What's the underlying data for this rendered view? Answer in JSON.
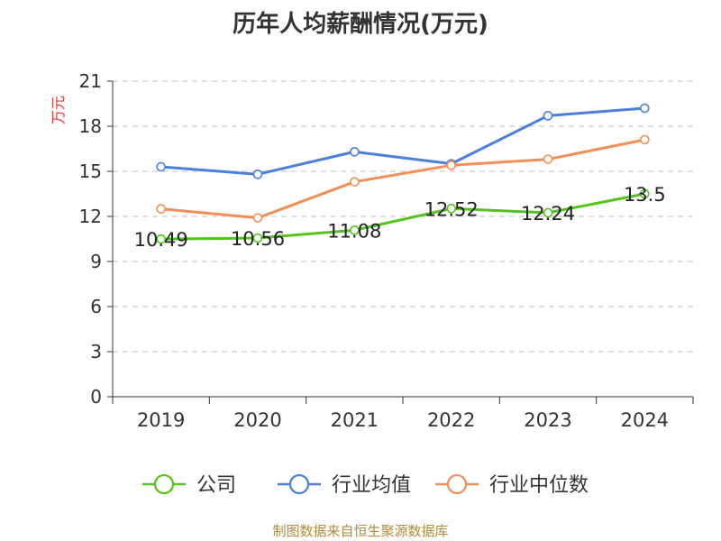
{
  "chart_data": {
    "type": "line",
    "title": "历年人均薪酬情况(万元)",
    "ylabel": "万元",
    "xlabel": "",
    "categories": [
      "2019",
      "2020",
      "2021",
      "2022",
      "2023",
      "2024"
    ],
    "ylim": [
      0,
      21
    ],
    "yticks": [
      0,
      3,
      6,
      9,
      12,
      15,
      18,
      21
    ],
    "grid": true,
    "legend_position": "bottom",
    "series": [
      {
        "name": "公司",
        "values": [
          10.49,
          10.56,
          11.08,
          12.52,
          12.24,
          13.5
        ],
        "color": "#52c41a",
        "show_labels": true
      },
      {
        "name": "行业均值",
        "values": [
          15.3,
          14.8,
          16.3,
          15.5,
          18.7,
          19.2
        ],
        "color": "#4a7fdc",
        "show_labels": false
      },
      {
        "name": "行业中位数",
        "values": [
          12.5,
          11.9,
          14.3,
          15.4,
          15.8,
          17.1
        ],
        "color": "#f28e56",
        "show_labels": false
      }
    ]
  },
  "footer": {
    "source": "制图数据来自恒生聚源数据库"
  },
  "colors": {
    "axis": "#333333",
    "grid": "#cccccc",
    "ylabel": "#e53935",
    "source": "#b08a3e"
  }
}
